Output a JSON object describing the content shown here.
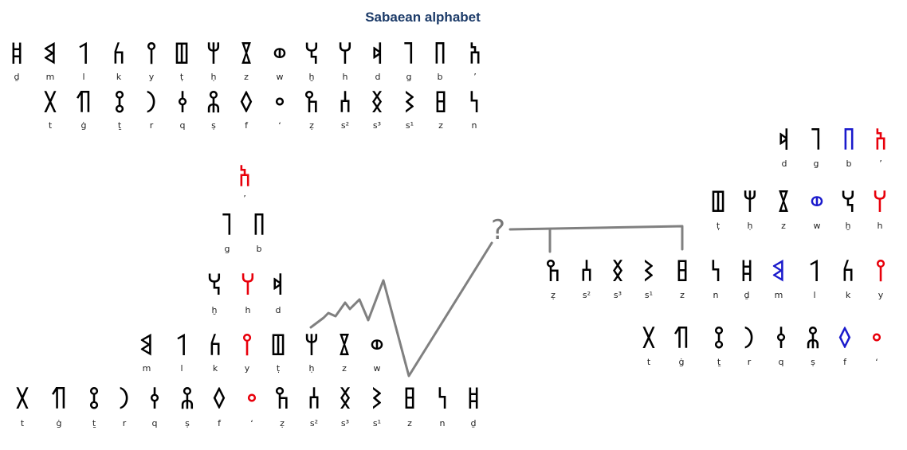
{
  "title": "Sabaean alphabet",
  "colors": {
    "black": "#000000",
    "red": "#e8000b",
    "blue": "#1a1acc",
    "line": "#808080"
  },
  "rows": [
    {
      "id": "top-row-1",
      "glyphs": [
        {
          "g": "𐩹",
          "l": "ḏ"
        },
        {
          "g": "𐩣",
          "l": "m"
        },
        {
          "g": "𐩡",
          "l": "l"
        },
        {
          "g": "𐩫",
          "l": "k"
        },
        {
          "g": "𐩺",
          "l": "y"
        },
        {
          "g": "𐩷",
          "l": "ṭ"
        },
        {
          "g": "𐩢",
          "l": "ḥ"
        },
        {
          "g": "𐩸",
          "l": "z"
        },
        {
          "g": "𐩥",
          "l": "w"
        },
        {
          "g": "𐩭",
          "l": "ḫ"
        },
        {
          "g": "𐩠",
          "l": "h"
        },
        {
          "g": "𐩵",
          "l": "d"
        },
        {
          "g": "𐩴",
          "l": "g"
        },
        {
          "g": "𐩨",
          "l": "b"
        },
        {
          "g": "𐩱",
          "l": "ʼ"
        }
      ]
    },
    {
      "id": "top-row-2",
      "glyphs": [
        {
          "g": "𐩩",
          "l": "t"
        },
        {
          "g": "𐩶",
          "l": "ġ"
        },
        {
          "g": "𐩻",
          "l": "ṯ"
        },
        {
          "g": "𐩧",
          "l": "r"
        },
        {
          "g": "𐩤",
          "l": "q"
        },
        {
          "g": "𐩮",
          "l": "ṣ"
        },
        {
          "g": "𐩰",
          "l": "f"
        },
        {
          "g": "𐩲",
          "l": "ʻ"
        },
        {
          "g": "𐩼",
          "l": "ẓ"
        },
        {
          "g": "𐩪",
          "l": "s²"
        },
        {
          "g": "𐩯",
          "l": "s³"
        },
        {
          "g": "𐩦",
          "l": "s¹"
        },
        {
          "g": "𐩳",
          "l": "z"
        },
        {
          "g": "𐩬",
          "l": "n"
        }
      ]
    },
    {
      "id": "tree-row-1",
      "glyphs": [
        {
          "g": "𐩱",
          "l": "ʼ",
          "c": "red"
        }
      ]
    },
    {
      "id": "tree-row-2",
      "glyphs": [
        {
          "g": "𐩴",
          "l": "g"
        },
        {
          "g": "𐩨",
          "l": "b"
        }
      ]
    },
    {
      "id": "tree-row-3",
      "glyphs": [
        {
          "g": "𐩭",
          "l": "ḫ"
        },
        {
          "g": "𐩠",
          "l": "h",
          "c": "red"
        },
        {
          "g": "𐩵",
          "l": "d"
        }
      ]
    },
    {
      "id": "tree-row-4",
      "glyphs": [
        {
          "g": "𐩣",
          "l": "m"
        },
        {
          "g": "𐩡",
          "l": "l"
        },
        {
          "g": "𐩫",
          "l": "k"
        },
        {
          "g": "𐩺",
          "l": "y",
          "c": "red"
        },
        {
          "g": "𐩷",
          "l": "ṭ"
        },
        {
          "g": "𐩢",
          "l": "ḥ"
        },
        {
          "g": "𐩸",
          "l": "z"
        },
        {
          "g": "𐩥",
          "l": "w"
        }
      ]
    },
    {
      "id": "tree-row-5",
      "glyphs": [
        {
          "g": "𐩩",
          "l": "t"
        },
        {
          "g": "𐩶",
          "l": "ġ"
        },
        {
          "g": "𐩻",
          "l": "ṯ"
        },
        {
          "g": "𐩧",
          "l": "r"
        },
        {
          "g": "𐩤",
          "l": "q"
        },
        {
          "g": "𐩮",
          "l": "ṣ"
        },
        {
          "g": "𐩰",
          "l": "f"
        },
        {
          "g": "𐩲",
          "l": "ʻ",
          "c": "red"
        },
        {
          "g": "𐩼",
          "l": "ẓ"
        },
        {
          "g": "𐩪",
          "l": "s²"
        },
        {
          "g": "𐩯",
          "l": "s³"
        },
        {
          "g": "𐩦",
          "l": "s¹"
        },
        {
          "g": "𐩳",
          "l": "z"
        },
        {
          "g": "𐩬",
          "l": "n"
        },
        {
          "g": "𐩹",
          "l": "ḏ"
        }
      ]
    },
    {
      "id": "right-row-1",
      "glyphs": [
        {
          "g": "𐩵",
          "l": "d"
        },
        {
          "g": "𐩴",
          "l": "g"
        },
        {
          "g": "𐩨",
          "l": "b",
          "c": "blue"
        },
        {
          "g": "𐩱",
          "l": "ʼ",
          "c": "red"
        }
      ]
    },
    {
      "id": "right-row-2",
      "glyphs": [
        {
          "g": "𐩷",
          "l": "ṭ"
        },
        {
          "g": "𐩢",
          "l": "ḥ"
        },
        {
          "g": "𐩸",
          "l": "z"
        },
        {
          "g": "𐩥",
          "l": "w",
          "c": "blue"
        },
        {
          "g": "𐩭",
          "l": "ḫ"
        },
        {
          "g": "𐩠",
          "l": "h",
          "c": "red"
        }
      ]
    },
    {
      "id": "right-row-3",
      "glyphs": [
        {
          "g": "𐩼",
          "l": "ẓ"
        },
        {
          "g": "𐩪",
          "l": "s²"
        },
        {
          "g": "𐩯",
          "l": "s³"
        },
        {
          "g": "𐩦",
          "l": "s¹"
        },
        {
          "g": "𐩳",
          "l": "z"
        },
        {
          "g": "𐩬",
          "l": "n"
        },
        {
          "g": "𐩹",
          "l": "ḏ"
        },
        {
          "g": "𐩣",
          "l": "m",
          "c": "blue"
        },
        {
          "g": "𐩡",
          "l": "l"
        },
        {
          "g": "𐩫",
          "l": "k"
        },
        {
          "g": "𐩺",
          "l": "y",
          "c": "red"
        }
      ]
    },
    {
      "id": "right-row-4",
      "glyphs": [
        {
          "g": "𐩩",
          "l": "t"
        },
        {
          "g": "𐩶",
          "l": "ġ"
        },
        {
          "g": "𐩻",
          "l": "ṯ"
        },
        {
          "g": "𐩧",
          "l": "r"
        },
        {
          "g": "𐩤",
          "l": "q"
        },
        {
          "g": "𐩮",
          "l": "ṣ"
        },
        {
          "g": "𐩰",
          "l": "f",
          "c": "blue"
        },
        {
          "g": "𐩲",
          "l": "ʻ",
          "c": "red"
        }
      ]
    }
  ],
  "question_mark": "?"
}
